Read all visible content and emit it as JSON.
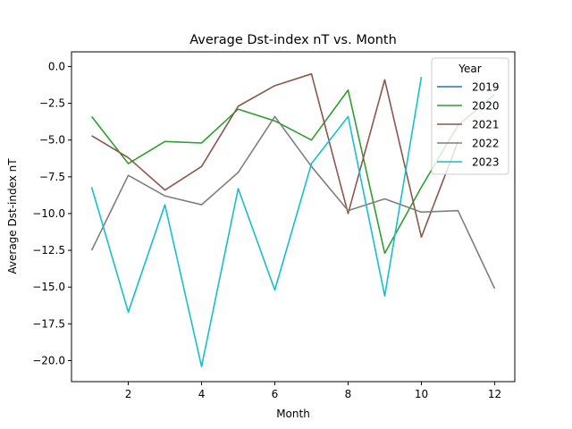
{
  "chart_data": {
    "type": "line",
    "title": "Average Dst-index nT vs. Month",
    "xlabel": "Month",
    "ylabel": "Average Dst-index nT",
    "xlim": [
      0.45,
      12.55
    ],
    "ylim": [
      -21.43,
      1.0
    ],
    "xticks": [
      2,
      4,
      6,
      8,
      10,
      12
    ],
    "yticks": [
      0.0,
      -2.5,
      -5.0,
      -7.5,
      -10.0,
      -12.5,
      -15.0,
      -17.5,
      -20.0
    ],
    "ytick_labels": [
      "0.0",
      "−2.5",
      "−5.0",
      "−7.5",
      "−10.0",
      "−12.5",
      "−15.0",
      "−17.5",
      "−20.0"
    ],
    "grid": false,
    "legend": {
      "title": "Year",
      "position": "top-right"
    },
    "series": [
      {
        "name": "2019",
        "color": "#1f77b4",
        "x": [],
        "values": []
      },
      {
        "name": "2020",
        "color": "#2ca02c",
        "x": [
          1,
          2,
          3,
          4,
          5,
          6,
          7,
          8,
          9,
          10,
          11,
          12
        ],
        "values": [
          -3.4,
          -6.6,
          -5.1,
          -5.2,
          -2.9,
          -3.7,
          -5.0,
          -1.6,
          -12.7,
          -8.2,
          -4.0,
          -1.9
        ]
      },
      {
        "name": "2021",
        "color": "#8c564b",
        "x": [
          1,
          2,
          3,
          4,
          5,
          6,
          7,
          8,
          9,
          10,
          11
        ],
        "values": [
          -4.7,
          -6.2,
          -8.4,
          -6.8,
          -2.7,
          -1.3,
          -0.5,
          -10.0,
          -0.9,
          -11.6,
          -5.1
        ]
      },
      {
        "name": "2022",
        "color": "#7f7f7f",
        "x": [
          1,
          2,
          3,
          4,
          5,
          6,
          7,
          8,
          9,
          10,
          11,
          12
        ],
        "values": [
          -12.5,
          -7.4,
          -8.8,
          -9.4,
          -7.2,
          -3.4,
          -6.8,
          -9.8,
          -9.0,
          -9.9,
          -9.8,
          -15.1
        ]
      },
      {
        "name": "2023",
        "color": "#17becf",
        "x": [
          1,
          2,
          3,
          4,
          5,
          6,
          7,
          8,
          9,
          10
        ],
        "values": [
          -8.2,
          -16.7,
          -9.4,
          -20.4,
          -8.3,
          -15.2,
          -6.6,
          -3.4,
          -15.6,
          -0.7
        ]
      }
    ]
  }
}
